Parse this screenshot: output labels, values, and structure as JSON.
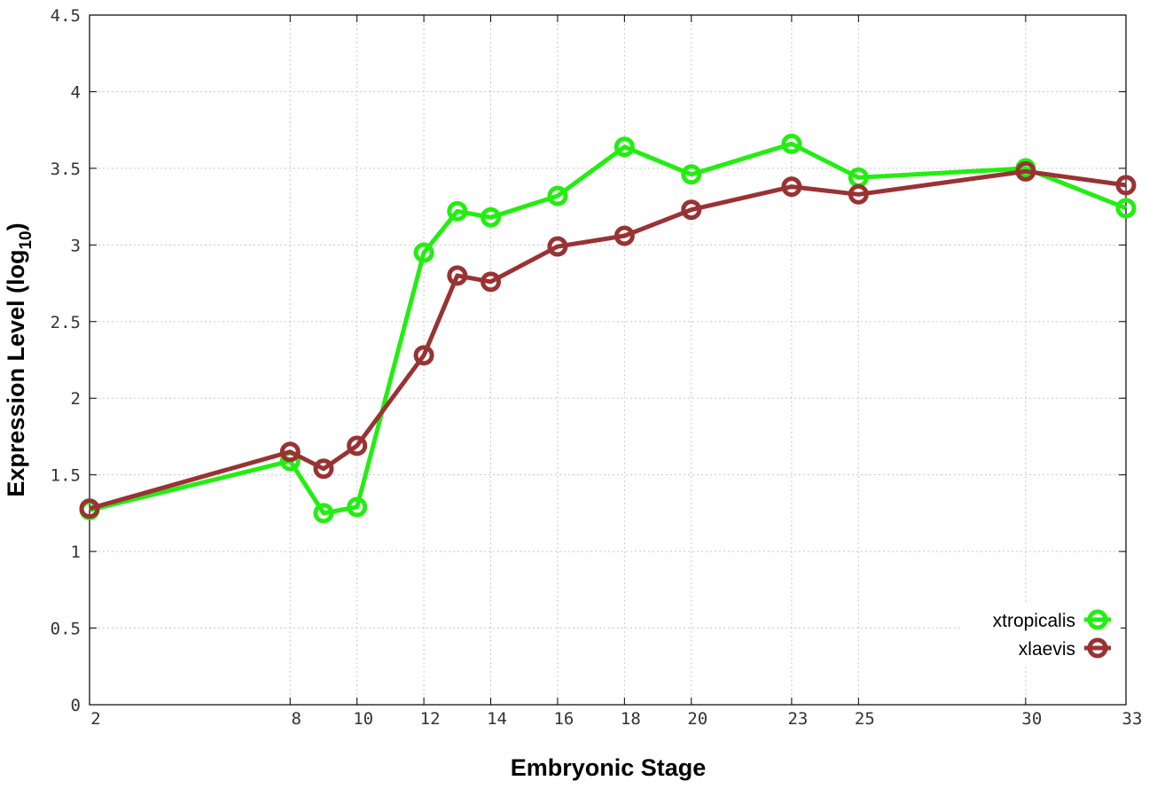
{
  "chart_data": {
    "type": "line",
    "xlabel": "Embryonic Stage",
    "ylabel_main": "Expression Level (log",
    "ylabel_sub": "10",
    "ylabel_close": ")",
    "xlim": [
      2,
      33
    ],
    "ylim": [
      0,
      4.5
    ],
    "x_ticks": [
      2,
      8,
      10,
      12,
      14,
      16,
      18,
      20,
      23,
      25,
      30,
      33
    ],
    "y_ticks": [
      "0",
      "0.5",
      "1",
      "1.5",
      "2",
      "2.5",
      "3",
      "3.5",
      "4",
      "4.5"
    ],
    "grid": true,
    "legend_position": "bottom-right",
    "colors": {
      "xtropicalis": "#22ee11",
      "xlaevis": "#993333"
    },
    "series": [
      {
        "name": "xtropicalis",
        "x": [
          2,
          8,
          9,
          10,
          12,
          13,
          14,
          16,
          18,
          20,
          23,
          25,
          30,
          33
        ],
        "y": [
          1.27,
          1.59,
          1.25,
          1.29,
          2.95,
          3.22,
          3.18,
          3.32,
          3.64,
          3.46,
          3.66,
          3.44,
          3.5,
          3.24
        ]
      },
      {
        "name": "xlaevis",
        "x": [
          2,
          8,
          9,
          10,
          12,
          13,
          14,
          16,
          18,
          20,
          23,
          25,
          30,
          33
        ],
        "y": [
          1.28,
          1.65,
          1.54,
          1.69,
          2.28,
          2.8,
          2.76,
          2.99,
          3.06,
          3.23,
          3.38,
          3.33,
          3.48,
          3.39
        ]
      }
    ]
  }
}
